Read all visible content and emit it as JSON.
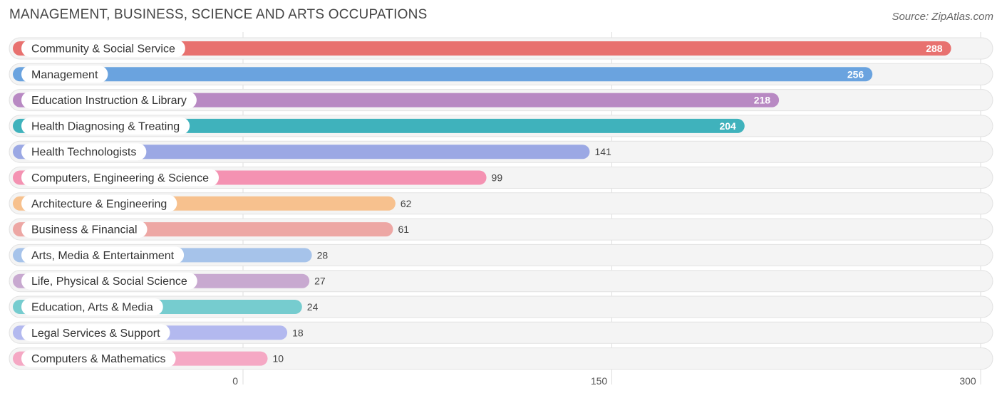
{
  "title": "MANAGEMENT, BUSINESS, SCIENCE AND ARTS OCCUPATIONS",
  "source": "Source: ZipAtlas.com",
  "chart_data": {
    "type": "bar",
    "orientation": "horizontal",
    "categories": [
      "Community & Social Service",
      "Management",
      "Education Instruction & Library",
      "Health Diagnosing & Treating",
      "Health Technologists",
      "Computers, Engineering & Science",
      "Architecture & Engineering",
      "Business & Financial",
      "Arts, Media & Entertainment",
      "Life, Physical & Social Science",
      "Education, Arts & Media",
      "Legal Services & Support",
      "Computers & Mathematics"
    ],
    "values": [
      288,
      256,
      218,
      204,
      141,
      99,
      62,
      61,
      28,
      27,
      24,
      18,
      10
    ],
    "colors": [
      "#e8716f",
      "#6aa3df",
      "#b889c3",
      "#3fb2bc",
      "#9ba8e4",
      "#f492b2",
      "#f7c18e",
      "#eda7a4",
      "#a6c3ea",
      "#c8a9d0",
      "#76cccf",
      "#b3b9ef",
      "#f5a8c4"
    ],
    "xlim": [
      0,
      300
    ],
    "xticks": [
      0,
      150,
      300
    ],
    "grid": true
  }
}
